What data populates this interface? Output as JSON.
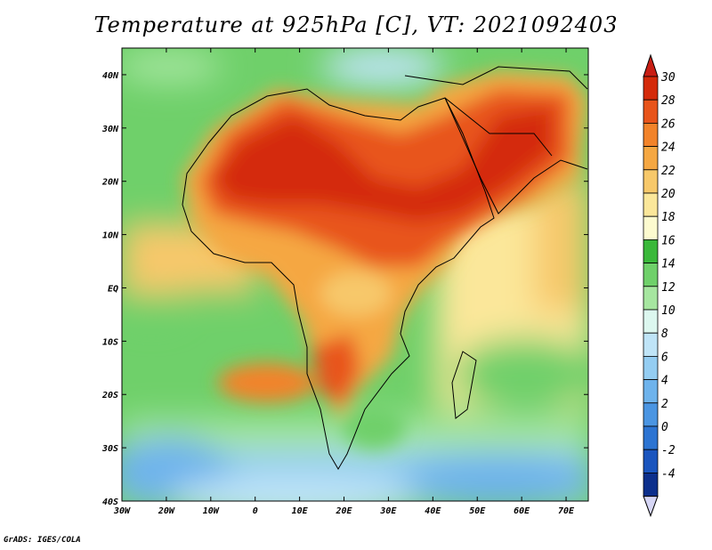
{
  "title": "Temperature at 925hPa [C], VT: 2021092403",
  "credit": "GrADS: IGES/COLA",
  "map": {
    "lon_range": [
      -30,
      75
    ],
    "lat_range": [
      -40,
      45
    ],
    "lon_ticks": [
      {
        "lon": -30,
        "label": "30W"
      },
      {
        "lon": -20,
        "label": "20W"
      },
      {
        "lon": -10,
        "label": "10W"
      },
      {
        "lon": 0,
        "label": "0"
      },
      {
        "lon": 10,
        "label": "10E"
      },
      {
        "lon": 20,
        "label": "20E"
      },
      {
        "lon": 30,
        "label": "30E"
      },
      {
        "lon": 40,
        "label": "40E"
      },
      {
        "lon": 50,
        "label": "50E"
      },
      {
        "lon": 60,
        "label": "60E"
      },
      {
        "lon": 70,
        "label": "70E"
      }
    ],
    "lat_ticks": [
      {
        "lat": 40,
        "label": "40N"
      },
      {
        "lat": 30,
        "label": "30N"
      },
      {
        "lat": 20,
        "label": "20N"
      },
      {
        "lat": 10,
        "label": "10N"
      },
      {
        "lat": 0,
        "label": "EQ"
      },
      {
        "lat": -10,
        "label": "10S"
      },
      {
        "lat": -20,
        "label": "20S"
      },
      {
        "lat": -30,
        "label": "30S"
      },
      {
        "lat": -40,
        "label": "40S"
      }
    ]
  },
  "colorbar": {
    "levels": [
      "30",
      "28",
      "26",
      "24",
      "22",
      "20",
      "18",
      "16",
      "14",
      "12",
      "10",
      "8",
      "6",
      "4",
      "2",
      "0",
      "-2",
      "-4"
    ],
    "colors": [
      "#d42a0a",
      "#e8541a",
      "#f2832a",
      "#f5a742",
      "#f7c86a",
      "#fbe79a",
      "#fdfbcf",
      "#3ab83a",
      "#6fd06a",
      "#a6e6a0",
      "#dcf7ef",
      "#bfe4f7",
      "#94cdf2",
      "#6eb3ec",
      "#4a95e2",
      "#2c74d2",
      "#1a55be",
      "#0c2f8c"
    ],
    "top_color": "#c81e14",
    "bottom_color": "#d6d6f5"
  }
}
